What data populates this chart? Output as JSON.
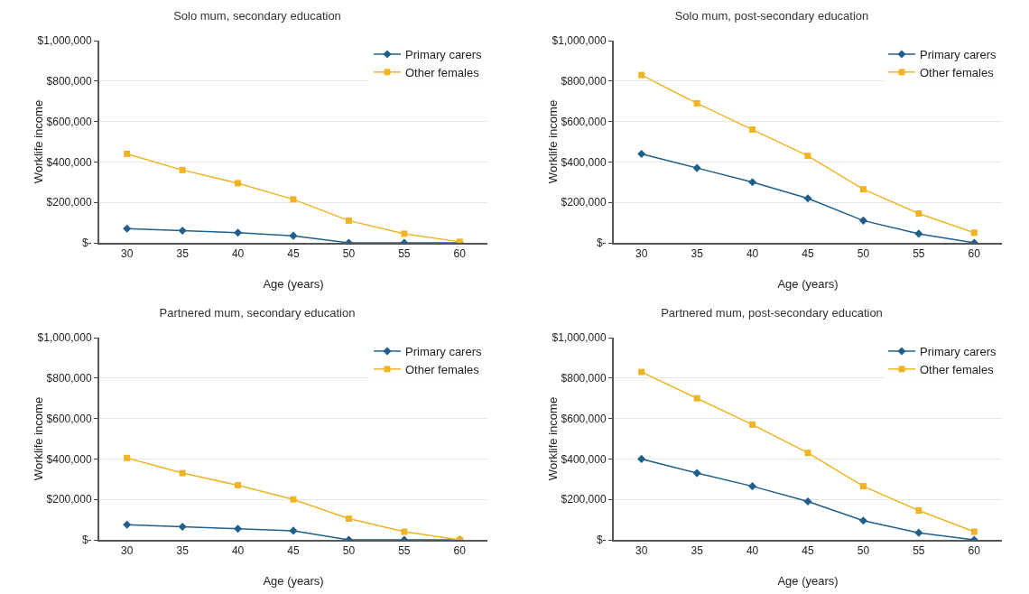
{
  "chart_data": [
    {
      "type": "line",
      "title": "Solo mum, secondary education",
      "xlabel": "Age (years)",
      "ylabel": "Worklife income",
      "categories": [
        "30",
        "35",
        "40",
        "45",
        "50",
        "55",
        "60"
      ],
      "ylim": [
        0,
        1000000
      ],
      "yticks": [
        {
          "value": 0,
          "label": "$-"
        },
        {
          "value": 200000,
          "label": "$200,000"
        },
        {
          "value": 400000,
          "label": "$400,000"
        },
        {
          "value": 600000,
          "label": "$600,000"
        },
        {
          "value": 800000,
          "label": "$800,000"
        },
        {
          "value": 1000000,
          "label": "$1,000,000"
        }
      ],
      "grid": "y",
      "legend": "top right",
      "series": [
        {
          "name": "Primary carers",
          "color": "#1f5f8b",
          "marker": "diamond",
          "values": [
            70000,
            60000,
            50000,
            35000,
            0,
            0,
            0
          ]
        },
        {
          "name": "Other females",
          "color": "#f0b323",
          "marker": "square",
          "values": [
            440000,
            360000,
            295000,
            215000,
            110000,
            45000,
            5000
          ]
        }
      ]
    },
    {
      "type": "line",
      "title": "Solo mum, post-secondary education",
      "xlabel": "Age (years)",
      "ylabel": "Worklife income",
      "categories": [
        "30",
        "35",
        "40",
        "45",
        "50",
        "55",
        "60"
      ],
      "ylim": [
        0,
        1000000
      ],
      "yticks": [
        {
          "value": 0,
          "label": "$-"
        },
        {
          "value": 200000,
          "label": "$200,000"
        },
        {
          "value": 400000,
          "label": "$400,000"
        },
        {
          "value": 600000,
          "label": "$600,000"
        },
        {
          "value": 800000,
          "label": "$800,000"
        },
        {
          "value": 1000000,
          "label": "$1,000,000"
        }
      ],
      "grid": "y",
      "legend": "top right",
      "series": [
        {
          "name": "Primary carers",
          "color": "#1f5f8b",
          "marker": "diamond",
          "values": [
            440000,
            370000,
            300000,
            220000,
            110000,
            45000,
            0
          ]
        },
        {
          "name": "Other females",
          "color": "#f0b323",
          "marker": "square",
          "values": [
            830000,
            690000,
            560000,
            430000,
            265000,
            145000,
            50000
          ]
        }
      ]
    },
    {
      "type": "line",
      "title": "Partnered mum, secondary education",
      "xlabel": "Age (years)",
      "ylabel": "Worklife income",
      "categories": [
        "30",
        "35",
        "40",
        "45",
        "50",
        "55",
        "60"
      ],
      "ylim": [
        0,
        1000000
      ],
      "yticks": [
        {
          "value": 0,
          "label": "$-"
        },
        {
          "value": 200000,
          "label": "$200,000"
        },
        {
          "value": 400000,
          "label": "$400,000"
        },
        {
          "value": 600000,
          "label": "$600,000"
        },
        {
          "value": 800000,
          "label": "$800,000"
        },
        {
          "value": 1000000,
          "label": "$1,000,000"
        }
      ],
      "grid": "y",
      "legend": "top right",
      "series": [
        {
          "name": "Primary carers",
          "color": "#1f5f8b",
          "marker": "diamond",
          "values": [
            75000,
            65000,
            55000,
            45000,
            0,
            0,
            0
          ]
        },
        {
          "name": "Other females",
          "color": "#f0b323",
          "marker": "square",
          "values": [
            405000,
            330000,
            270000,
            200000,
            105000,
            40000,
            0
          ]
        }
      ]
    },
    {
      "type": "line",
      "title": "Partnered mum, post-secondary education",
      "xlabel": "Age (years)",
      "ylabel": "Worklife income",
      "categories": [
        "30",
        "35",
        "40",
        "45",
        "50",
        "55",
        "60"
      ],
      "ylim": [
        0,
        1000000
      ],
      "yticks": [
        {
          "value": 0,
          "label": "$-"
        },
        {
          "value": 200000,
          "label": "$200,000"
        },
        {
          "value": 400000,
          "label": "$400,000"
        },
        {
          "value": 600000,
          "label": "$600,000"
        },
        {
          "value": 800000,
          "label": "$800,000"
        },
        {
          "value": 1000000,
          "label": "$1,000,000"
        }
      ],
      "grid": "y",
      "legend": "top right",
      "series": [
        {
          "name": "Primary carers",
          "color": "#1f5f8b",
          "marker": "diamond",
          "values": [
            400000,
            330000,
            265000,
            190000,
            95000,
            35000,
            0
          ]
        },
        {
          "name": "Other females",
          "color": "#f0b323",
          "marker": "square",
          "values": [
            830000,
            700000,
            570000,
            430000,
            265000,
            145000,
            40000
          ]
        }
      ]
    }
  ]
}
